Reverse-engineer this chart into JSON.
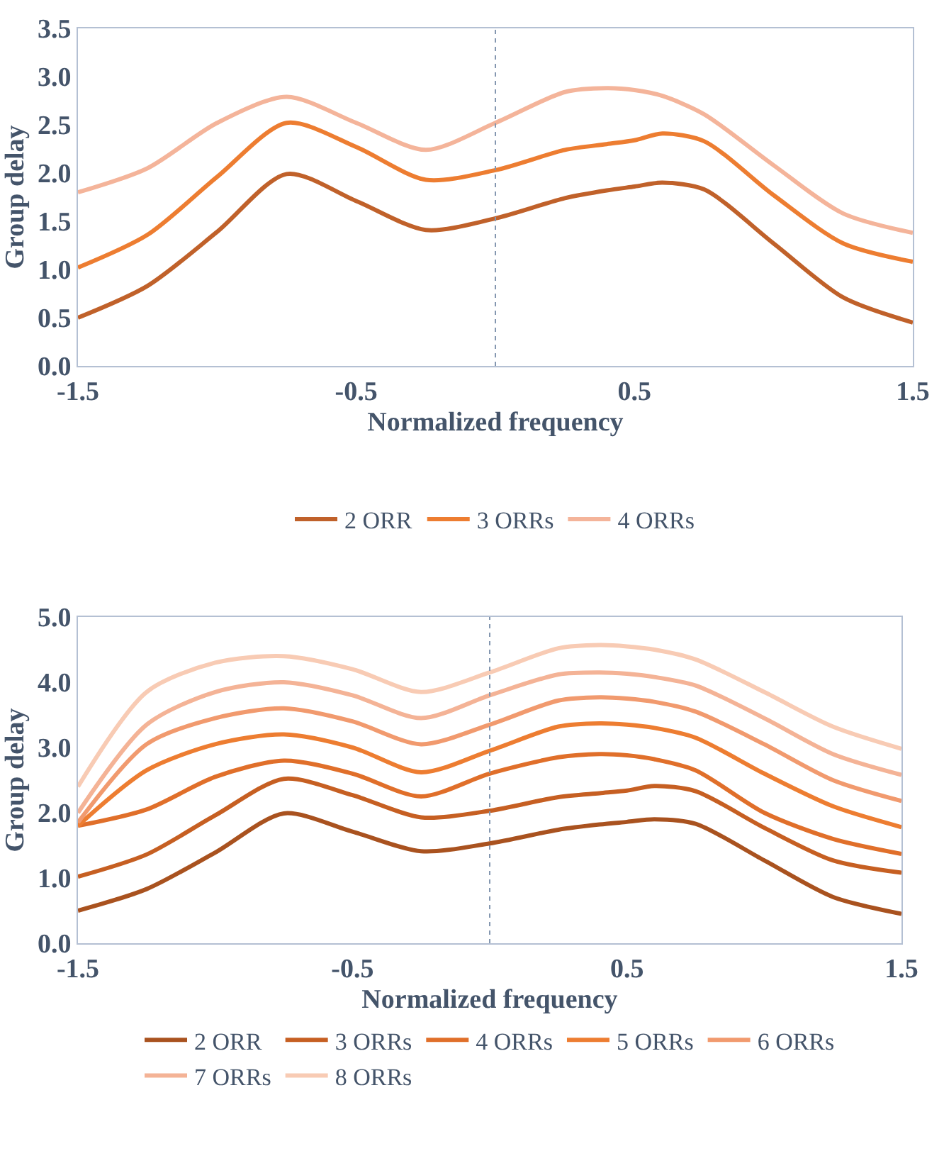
{
  "chart_data": [
    {
      "type": "line",
      "xlabel": "Normalized frequency",
      "ylabel": "Group delay",
      "x": [
        -1.5,
        -1.25,
        -1,
        -0.75,
        -0.5,
        -0.25,
        0,
        0.25,
        0.4,
        0.5,
        0.6,
        0.75,
        1,
        1.25,
        1.5
      ],
      "series": [
        {
          "name": "2 ORR",
          "color": "#c0612a",
          "values": [
            0.5,
            0.83,
            1.39,
            1.99,
            1.71,
            1.41,
            1.53,
            1.74,
            1.82,
            1.86,
            1.9,
            1.83,
            1.27,
            0.71,
            0.45
          ]
        },
        {
          "name": "3 ORRs",
          "color": "#ed7d31",
          "values": [
            1.02,
            1.36,
            1.96,
            2.52,
            2.27,
            1.93,
            2.03,
            2.24,
            2.3,
            2.34,
            2.41,
            2.33,
            1.77,
            1.27,
            1.08
          ]
        },
        {
          "name": "4 ORRs",
          "color": "#f4b49a",
          "values": [
            1.8,
            2.05,
            2.52,
            2.79,
            2.52,
            2.24,
            2.52,
            2.84,
            2.88,
            2.86,
            2.8,
            2.61,
            2.08,
            1.58,
            1.38
          ]
        }
      ],
      "xlim": [
        -1.5,
        1.5
      ],
      "xticks": [
        -1.5,
        -0.5,
        0.5,
        1.5
      ],
      "ylim": [
        0,
        3.5
      ],
      "yticks": [
        {
          "value": 0,
          "label": "0.0"
        },
        {
          "value": 0.5,
          "label": "0.5"
        },
        {
          "value": 1,
          "label": "1.0"
        },
        {
          "value": 1.5,
          "label": "1.5"
        },
        {
          "value": 2,
          "label": "2.0"
        },
        {
          "value": 2.5,
          "label": "2.5"
        },
        {
          "value": 3,
          "label": "3.0"
        },
        {
          "value": 3.5,
          "label": "3.5"
        }
      ],
      "ref_lines": [
        {
          "axis": "x",
          "value": 0,
          "color": "#8497b0",
          "line_style": "dotted"
        }
      ],
      "grid": false,
      "legend": "bottom",
      "marker": "none",
      "line_style": "solid"
    },
    {
      "type": "line",
      "xlabel": "Normalized frequency",
      "ylabel": "Group delay",
      "x": [
        -1.5,
        -1.25,
        -1,
        -0.75,
        -0.5,
        -0.25,
        0,
        0.25,
        0.4,
        0.5,
        0.6,
        0.75,
        1,
        1.25,
        1.5
      ],
      "series": [
        {
          "name": "2 ORR",
          "color": "#a9521f",
          "values": [
            0.5,
            0.83,
            1.39,
            1.99,
            1.71,
            1.41,
            1.53,
            1.74,
            1.82,
            1.86,
            1.9,
            1.83,
            1.27,
            0.71,
            0.45
          ]
        },
        {
          "name": "3 ORRs",
          "color": "#c65f22",
          "values": [
            1.02,
            1.36,
            1.96,
            2.52,
            2.27,
            1.93,
            2.03,
            2.24,
            2.3,
            2.34,
            2.41,
            2.33,
            1.77,
            1.27,
            1.08
          ]
        },
        {
          "name": "4 ORRs",
          "color": "#e06f2a",
          "values": [
            1.8,
            2.05,
            2.55,
            2.8,
            2.6,
            2.25,
            2.6,
            2.85,
            2.9,
            2.88,
            2.82,
            2.65,
            2.0,
            1.6,
            1.37
          ]
        },
        {
          "name": "5 ORRs",
          "color": "#ed7d31",
          "values": [
            1.8,
            2.65,
            3.05,
            3.2,
            3.0,
            2.62,
            2.95,
            3.32,
            3.37,
            3.35,
            3.3,
            3.15,
            2.6,
            2.1,
            1.78
          ]
        },
        {
          "name": "6 ORRs",
          "color": "#f19a6e",
          "values": [
            1.85,
            3.05,
            3.45,
            3.6,
            3.4,
            3.05,
            3.35,
            3.72,
            3.77,
            3.75,
            3.7,
            3.55,
            3.05,
            2.5,
            2.18
          ]
        },
        {
          "name": "7 ORRs",
          "color": "#f4b396",
          "values": [
            2.0,
            3.35,
            3.85,
            4.0,
            3.8,
            3.45,
            3.8,
            4.12,
            4.15,
            4.13,
            4.08,
            3.95,
            3.45,
            2.9,
            2.58
          ]
        },
        {
          "name": "8 ORRs",
          "color": "#f8cbb4",
          "values": [
            2.4,
            3.85,
            4.3,
            4.4,
            4.2,
            3.85,
            4.15,
            4.52,
            4.57,
            4.55,
            4.5,
            4.35,
            3.85,
            3.32,
            2.98
          ]
        }
      ],
      "xlim": [
        -1.5,
        1.5
      ],
      "xticks": [
        -1.5,
        -0.5,
        0.5,
        1.5
      ],
      "ylim": [
        0,
        5
      ],
      "yticks": [
        {
          "value": 0,
          "label": "0.0"
        },
        {
          "value": 1,
          "label": "1.0"
        },
        {
          "value": 2,
          "label": "2.0"
        },
        {
          "value": 3,
          "label": "3.0"
        },
        {
          "value": 4,
          "label": "4.0"
        },
        {
          "value": 5,
          "label": "5.0"
        }
      ],
      "ref_lines": [
        {
          "axis": "x",
          "value": 0,
          "color": "#8497b0",
          "line_style": "dotted"
        }
      ],
      "grid": false,
      "legend": "bottom",
      "marker": "none",
      "line_style": "solid"
    }
  ]
}
